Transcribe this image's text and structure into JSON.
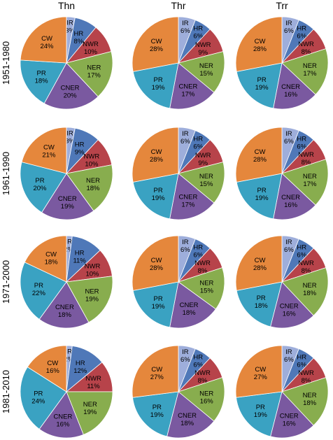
{
  "colors": {
    "IR": "#9eaedb",
    "HR": "#4f78b8",
    "NWR": "#b7434a",
    "NER": "#88ad4e",
    "CNER": "#7a59a0",
    "PR": "#3aa2c2",
    "CW": "#e5873c"
  },
  "chart_data": {
    "type": "pie",
    "columns": [
      "Thn",
      "Thr",
      "Trr"
    ],
    "rows": [
      "1951-1980",
      "1961-1990",
      "1971-2000",
      "1981-2010"
    ],
    "categories": [
      "IR",
      "HR",
      "NWR",
      "NER",
      "CNER",
      "PR",
      "CW"
    ],
    "panels": [
      {
        "row": "1951-1980",
        "column": "Thn",
        "values": [
          3,
          8,
          10,
          17,
          20,
          18,
          24
        ],
        "labels": [
          "3%",
          "8%",
          "10%",
          "17%",
          "20%",
          "18%",
          "24%"
        ]
      },
      {
        "row": "1951-1980",
        "column": "Thr",
        "values": [
          6,
          6,
          9,
          15,
          17,
          19,
          28
        ],
        "labels": [
          "6%",
          "6%",
          "9%",
          "15%",
          "17%",
          "19%",
          "28%"
        ]
      },
      {
        "row": "1951-1980",
        "column": "Trr",
        "values": [
          6,
          6,
          8,
          17,
          16,
          19,
          28
        ],
        "labels": [
          "6%",
          "6%",
          "8%",
          "17%",
          "16%",
          "19%",
          "28%"
        ]
      },
      {
        "row": "1961-1990",
        "column": "Thn",
        "values": [
          3,
          9,
          10,
          18,
          19,
          20,
          21
        ],
        "labels": [
          "3%",
          "9%",
          "10%",
          "18%",
          "19%",
          "20%",
          "21%"
        ]
      },
      {
        "row": "1961-1990",
        "column": "Thr",
        "values": [
          6,
          6,
          9,
          15,
          17,
          19,
          28
        ],
        "labels": [
          "6%",
          "6%",
          "9%",
          "15%",
          "17%",
          "19%",
          "28%"
        ]
      },
      {
        "row": "1961-1990",
        "column": "Trr",
        "values": [
          6,
          6,
          8,
          17,
          16,
          19,
          28
        ],
        "labels": [
          "6%",
          "6%",
          "8%",
          "17%",
          "16%",
          "19%",
          "28%"
        ]
      },
      {
        "row": "1971-2000",
        "column": "Thn",
        "values": [
          2,
          11,
          10,
          19,
          18,
          22,
          18
        ],
        "labels": [
          "2%",
          "11%",
          "10%",
          "19%",
          "18%",
          "22%",
          "18%"
        ]
      },
      {
        "row": "1971-2000",
        "column": "Thr",
        "values": [
          6,
          6,
          8,
          15,
          18,
          19,
          28
        ],
        "labels": [
          "6%",
          "6%",
          "8%",
          "15%",
          "18%",
          "19%",
          "28%"
        ]
      },
      {
        "row": "1971-2000",
        "column": "Trr",
        "values": [
          6,
          6,
          8,
          18,
          16,
          18,
          28
        ],
        "labels": [
          "6%",
          "6%",
          "8%",
          "18%",
          "16%",
          "18%",
          "28%"
        ]
      },
      {
        "row": "1981-2010",
        "column": "Thn",
        "values": [
          2,
          12,
          11,
          19,
          16,
          24,
          16
        ],
        "labels": [
          "2%",
          "12%",
          "11%",
          "19%",
          "16%",
          "24%",
          "16%"
        ]
      },
      {
        "row": "1981-2010",
        "column": "Thr",
        "values": [
          6,
          6,
          8,
          16,
          18,
          19,
          27
        ],
        "labels": [
          "6%",
          "6%",
          "8%",
          "16%",
          "18%",
          "19%",
          "27%"
        ]
      },
      {
        "row": "1981-2010",
        "column": "Trr",
        "values": [
          6,
          6,
          8,
          18,
          16,
          19,
          27
        ],
        "labels": [
          "6%",
          "6%",
          "8%",
          "18%",
          "16%",
          "19%",
          "27%"
        ]
      }
    ]
  }
}
